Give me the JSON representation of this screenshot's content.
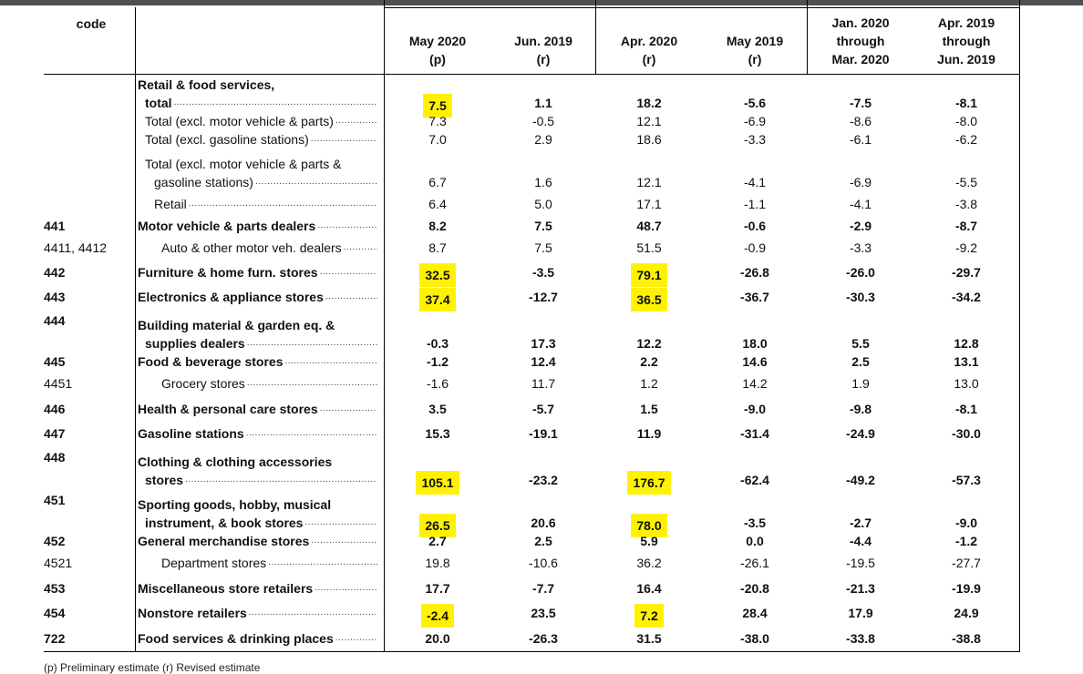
{
  "table": {
    "code_header": "code",
    "columns": [
      {
        "line1": "May 2020",
        "line2": "(p)"
      },
      {
        "line1": "Jun. 2019",
        "line2": "(r)"
      },
      {
        "line1": "Apr. 2020",
        "line2": "(r)"
      },
      {
        "line1": "May 2019",
        "line2": "(r)"
      },
      {
        "line1": "Jan. 2020",
        "line2": "through",
        "line3": "Mar. 2020"
      },
      {
        "line1": "Apr. 2019",
        "line2": "through",
        "line3": "Jun. 2019"
      }
    ],
    "rows": [
      {
        "code": "",
        "label_lines": [
          "Retail & food services,",
          "total"
        ],
        "bold": true,
        "values": [
          "7.5",
          "1.1",
          "18.2",
          "-5.6",
          "-7.5",
          "-8.1"
        ],
        "highlight": [
          true,
          false,
          false,
          false,
          false,
          false
        ]
      },
      {
        "code": "",
        "label_lines": [
          "Total (excl. motor vehicle & parts)"
        ],
        "bold": false,
        "values": [
          "7.3",
          "-0.5",
          "12.1",
          "-6.9",
          "-8.6",
          "-8.0"
        ],
        "highlight": [
          false,
          false,
          false,
          false,
          false,
          false
        ]
      },
      {
        "code": "",
        "label_lines": [
          "Total (excl. gasoline stations)"
        ],
        "bold": false,
        "values": [
          "7.0",
          "2.9",
          "18.6",
          "-3.3",
          "-6.1",
          "-6.2"
        ],
        "highlight": [
          false,
          false,
          false,
          false,
          false,
          false
        ]
      },
      {
        "code": "",
        "label_lines": [
          "Total (excl. motor vehicle & parts &",
          "gasoline stations)"
        ],
        "bold": false,
        "values": [
          "6.7",
          "1.6",
          "12.1",
          "-4.1",
          "-6.9",
          "-5.5"
        ],
        "highlight": [
          false,
          false,
          false,
          false,
          false,
          false
        ]
      },
      {
        "code": "",
        "label_lines": [
          "Retail"
        ],
        "bold": false,
        "values": [
          "6.4",
          "5.0",
          "17.1",
          "-1.1",
          "-4.1",
          "-3.8"
        ],
        "highlight": [
          false,
          false,
          false,
          false,
          false,
          false
        ]
      },
      {
        "code": "441",
        "label_lines": [
          "Motor vehicle & parts dealers"
        ],
        "bold": true,
        "values": [
          "8.2",
          "7.5",
          "48.7",
          "-0.6",
          "-2.9",
          "-8.7"
        ],
        "highlight": [
          false,
          false,
          false,
          false,
          false,
          false
        ]
      },
      {
        "code": "4411, 4412",
        "label_lines": [
          "Auto & other motor veh. dealers"
        ],
        "bold": false,
        "values": [
          "8.7",
          "7.5",
          "51.5",
          "-0.9",
          "-3.3",
          "-9.2"
        ],
        "highlight": [
          false,
          false,
          false,
          false,
          false,
          false
        ]
      },
      {
        "code": "442",
        "label_lines": [
          "Furniture & home furn. stores"
        ],
        "bold": true,
        "values": [
          "32.5",
          "-3.5",
          "79.1",
          "-26.8",
          "-26.0",
          "-29.7"
        ],
        "highlight": [
          true,
          false,
          true,
          false,
          false,
          false
        ]
      },
      {
        "code": "443",
        "label_lines": [
          "Electronics & appliance stores"
        ],
        "bold": true,
        "values": [
          "37.4",
          "-12.7",
          "36.5",
          "-36.7",
          "-30.3",
          "-34.2"
        ],
        "highlight": [
          true,
          false,
          true,
          false,
          false,
          false
        ]
      },
      {
        "code": "444",
        "label_lines": [
          "Building material & garden eq. &",
          "supplies dealers"
        ],
        "bold": true,
        "values": [
          "-0.3",
          "17.3",
          "12.2",
          "18.0",
          "5.5",
          "12.8"
        ],
        "highlight": [
          false,
          false,
          false,
          false,
          false,
          false
        ]
      },
      {
        "code": "445",
        "label_lines": [
          "Food & beverage stores"
        ],
        "bold": true,
        "values": [
          "-1.2",
          "12.4",
          "2.2",
          "14.6",
          "2.5",
          "13.1"
        ],
        "highlight": [
          false,
          false,
          false,
          false,
          false,
          false
        ]
      },
      {
        "code": "4451",
        "label_lines": [
          "Grocery stores"
        ],
        "bold": false,
        "values": [
          "-1.6",
          "11.7",
          "1.2",
          "14.2",
          "1.9",
          "13.0"
        ],
        "highlight": [
          false,
          false,
          false,
          false,
          false,
          false
        ]
      },
      {
        "code": "446",
        "label_lines": [
          "Health & personal care stores"
        ],
        "bold": true,
        "values": [
          "3.5",
          "-5.7",
          "1.5",
          "-9.0",
          "-9.8",
          "-8.1"
        ],
        "highlight": [
          false,
          false,
          false,
          false,
          false,
          false
        ]
      },
      {
        "code": "447",
        "label_lines": [
          "Gasoline stations"
        ],
        "bold": true,
        "values": [
          "15.3",
          "-19.1",
          "11.9",
          "-31.4",
          "-24.9",
          "-30.0"
        ],
        "highlight": [
          false,
          false,
          false,
          false,
          false,
          false
        ]
      },
      {
        "code": "448",
        "label_lines": [
          "Clothing & clothing accessories",
          "stores"
        ],
        "bold": true,
        "values": [
          "105.1",
          "-23.2",
          "176.7",
          "-62.4",
          "-49.2",
          "-57.3"
        ],
        "highlight": [
          true,
          false,
          true,
          false,
          false,
          false
        ]
      },
      {
        "code": "451",
        "label_lines": [
          "Sporting goods, hobby, musical",
          "instrument, & book stores"
        ],
        "bold": true,
        "values": [
          "26.5",
          "20.6",
          "78.0",
          "-3.5",
          "-2.7",
          "-9.0"
        ],
        "highlight": [
          true,
          false,
          true,
          false,
          false,
          false
        ]
      },
      {
        "code": "452",
        "label_lines": [
          "General merchandise stores"
        ],
        "bold": true,
        "values": [
          "2.7",
          "2.5",
          "5.9",
          "0.0",
          "-4.4",
          "-1.2"
        ],
        "highlight": [
          false,
          false,
          false,
          false,
          false,
          false
        ]
      },
      {
        "code": "4521",
        "label_lines": [
          "Department stores"
        ],
        "bold": false,
        "values": [
          "19.8",
          "-10.6",
          "36.2",
          "-26.1",
          "-19.5",
          "-27.7"
        ],
        "highlight": [
          false,
          false,
          false,
          false,
          false,
          false
        ]
      },
      {
        "code": "453",
        "label_lines": [
          "Miscellaneous store retailers"
        ],
        "bold": true,
        "values": [
          "17.7",
          "-7.7",
          "16.4",
          "-20.8",
          "-21.3",
          "-19.9"
        ],
        "highlight": [
          false,
          false,
          false,
          false,
          false,
          false
        ]
      },
      {
        "code": "454",
        "label_lines": [
          "Nonstore retailers"
        ],
        "bold": true,
        "values": [
          "-2.4",
          "23.5",
          "7.2",
          "28.4",
          "17.9",
          "24.9"
        ],
        "highlight": [
          true,
          false,
          true,
          false,
          false,
          false
        ]
      },
      {
        "code": "722",
        "label_lines": [
          "Food services & drinking places"
        ],
        "bold": true,
        "values": [
          "20.0",
          "-26.3",
          "31.5",
          "-38.0",
          "-33.8",
          "-38.8"
        ],
        "highlight": [
          false,
          false,
          false,
          false,
          false,
          false
        ]
      }
    ],
    "footnote": "(p) Preliminary estimate     (r) Revised estimate"
  },
  "colors": {
    "highlight": "#fff200",
    "rule": "#000000",
    "topbar": "#505050"
  }
}
